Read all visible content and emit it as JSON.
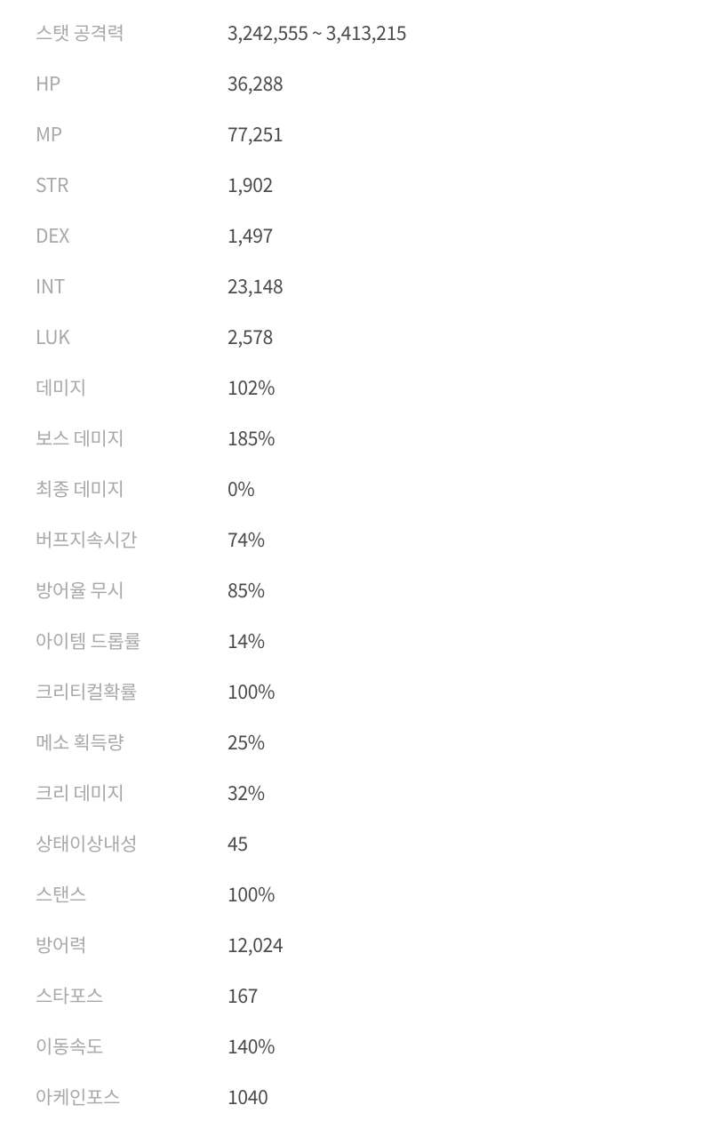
{
  "stats": [
    {
      "label": "스탯 공격력",
      "value": "3,242,555 ~ 3,413,215"
    },
    {
      "label": "HP",
      "value": "36,288"
    },
    {
      "label": "MP",
      "value": "77,251"
    },
    {
      "label": "STR",
      "value": "1,902"
    },
    {
      "label": "DEX",
      "value": "1,497"
    },
    {
      "label": "INT",
      "value": "23,148"
    },
    {
      "label": "LUK",
      "value": "2,578"
    },
    {
      "label": "데미지",
      "value": "102%"
    },
    {
      "label": "보스 데미지",
      "value": "185%"
    },
    {
      "label": "최종 데미지",
      "value": "0%"
    },
    {
      "label": "버프지속시간",
      "value": "74%"
    },
    {
      "label": "방어율 무시",
      "value": "85%"
    },
    {
      "label": "아이템 드롭률",
      "value": "14%"
    },
    {
      "label": "크리티컬확률",
      "value": "100%"
    },
    {
      "label": "메소 획득량",
      "value": "25%"
    },
    {
      "label": "크리 데미지",
      "value": "32%"
    },
    {
      "label": "상태이상내성",
      "value": "45"
    },
    {
      "label": "스탠스",
      "value": "100%"
    },
    {
      "label": "방어력",
      "value": "12,024"
    },
    {
      "label": "스타포스",
      "value": "167"
    },
    {
      "label": "이동속도",
      "value": "140%"
    },
    {
      "label": "아케인포스",
      "value": "1040"
    }
  ],
  "colors": {
    "background": "#ffffff",
    "label_color": "#a8a8a8",
    "value_color": "#4a4a4a"
  },
  "typography": {
    "font_size_pt": 21,
    "font_weight": 400
  }
}
